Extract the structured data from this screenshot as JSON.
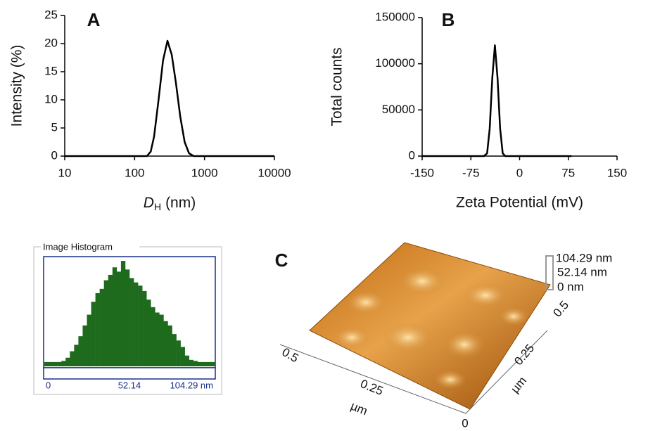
{
  "chart_data": [
    {
      "type": "line",
      "panel": "A",
      "ylabel": "Intensity (%)",
      "xlabel_parts": [
        "D",
        "H",
        "(nm)"
      ],
      "xscale": "log",
      "xlim": [
        10,
        10000
      ],
      "xticks": [
        10,
        100,
        1000,
        10000
      ],
      "ylim": [
        0,
        25
      ],
      "yticks": [
        0,
        5,
        10,
        15,
        20,
        25
      ],
      "color": "#000000",
      "x": [
        10,
        150,
        170,
        190,
        220,
        255,
        295,
        340,
        390,
        450,
        520,
        600,
        700,
        10000
      ],
      "values": [
        0,
        0,
        0.8,
        3.5,
        10,
        17,
        20.5,
        18,
        13,
        7,
        2.5,
        0.5,
        0,
        0
      ]
    },
    {
      "type": "line",
      "panel": "B",
      "ylabel": "Total counts",
      "xlabel": "Zeta Potential (mV)",
      "xlim": [
        -150,
        150
      ],
      "xticks": [
        -150,
        -75,
        0,
        75,
        150
      ],
      "ylim": [
        0,
        150000
      ],
      "yticks": [
        0,
        50000,
        100000,
        150000
      ],
      "color": "#000000",
      "x": [
        -150,
        -55,
        -50,
        -46,
        -42,
        -38,
        -34,
        -30,
        -26,
        -22,
        80
      ],
      "values": [
        0,
        0,
        3000,
        30000,
        85000,
        120000,
        85000,
        30000,
        3000,
        0,
        0
      ]
    },
    {
      "type": "histogram",
      "title": "Image Histogram",
      "color": "#1e6b1e",
      "xlim": [
        0,
        104.29
      ],
      "ylim": [
        0,
        100
      ],
      "xticks": [
        0,
        52.14,
        {
          "value": 104.29,
          "label": "104.29 nm"
        }
      ],
      "bins": [
        0,
        2.61,
        5.21,
        7.82,
        10.43,
        13.04,
        15.64,
        18.25,
        20.86,
        23.47,
        26.07,
        28.68,
        31.29,
        33.89,
        36.5,
        39.11,
        41.72,
        44.32,
        46.93,
        49.54,
        52.14,
        54.75,
        57.36,
        59.97,
        62.57,
        65.18,
        67.79,
        70.4,
        73,
        75.61,
        78.22,
        80.83,
        83.43,
        86.04,
        88.65,
        91.25,
        93.86,
        96.47,
        99.08,
        101.68,
        104.29
      ],
      "values": [
        4,
        4,
        4,
        4,
        5,
        8,
        14,
        20,
        28,
        38,
        48,
        60,
        68,
        72,
        80,
        85,
        92,
        88,
        98,
        90,
        82,
        78,
        75,
        70,
        62,
        55,
        50,
        48,
        42,
        38,
        30,
        24,
        18,
        10,
        6,
        5,
        4,
        4,
        4,
        4
      ]
    },
    {
      "type": "surface",
      "panel": "C",
      "scale_labels": [
        "104.29 nm",
        "52.14 nm",
        "0 nm"
      ],
      "left_axis": [
        "0.5",
        "0.25",
        "µm"
      ],
      "right_axis": [
        "0.5",
        "0.25",
        "µm"
      ],
      "origin": "0"
    }
  ]
}
